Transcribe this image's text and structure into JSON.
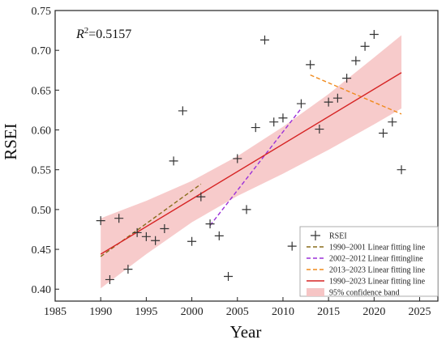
{
  "chart_data": {
    "type": "scatter",
    "xlabel": "Year",
    "ylabel": "RSEI",
    "xlim": [
      1985,
      2027
    ],
    "ylim": [
      0.385,
      0.75
    ],
    "x_ticks": [
      1985,
      1990,
      1995,
      2000,
      2005,
      2010,
      2015,
      2020,
      2025
    ],
    "y_ticks": [
      0.4,
      0.45,
      0.5,
      0.55,
      0.6,
      0.65,
      0.7,
      0.75
    ],
    "annotation": {
      "r2_label": "R",
      "r2_sup": "2",
      "r2_value": "=0.5157"
    },
    "legend_placement": "bottom-right",
    "series": [
      {
        "name": "RSEI",
        "kind": "scatter",
        "marker": "plus",
        "color": "#333333",
        "points": [
          [
            1990,
            0.486
          ],
          [
            1991,
            0.412
          ],
          [
            1992,
            0.489
          ],
          [
            1993,
            0.425
          ],
          [
            1994,
            0.471
          ],
          [
            1995,
            0.466
          ],
          [
            1996,
            0.461
          ],
          [
            1997,
            0.476
          ],
          [
            1998,
            0.561
          ],
          [
            1999,
            0.624
          ],
          [
            2000,
            0.46
          ],
          [
            2001,
            0.516
          ],
          [
            2002,
            0.482
          ],
          [
            2003,
            0.467
          ],
          [
            2004,
            0.416
          ],
          [
            2005,
            0.564
          ],
          [
            2006,
            0.5
          ],
          [
            2007,
            0.603
          ],
          [
            2008,
            0.713
          ],
          [
            2009,
            0.61
          ],
          [
            2010,
            0.615
          ],
          [
            2011,
            0.454
          ],
          [
            2012,
            0.633
          ],
          [
            2013,
            0.682
          ],
          [
            2014,
            0.601
          ],
          [
            2015,
            0.635
          ],
          [
            2016,
            0.64
          ],
          [
            2017,
            0.665
          ],
          [
            2018,
            0.687
          ],
          [
            2019,
            0.705
          ],
          [
            2020,
            0.72
          ],
          [
            2021,
            0.596
          ],
          [
            2022,
            0.61
          ],
          [
            2023,
            0.55
          ]
        ]
      },
      {
        "name": "1990–2001 Linear fitting line",
        "kind": "line",
        "dash": "dashed",
        "color": "#8a6d1c",
        "points": [
          [
            1990,
            0.441
          ],
          [
            2001,
            0.532
          ]
        ]
      },
      {
        "name": "2002–2012 Linear fittingline",
        "kind": "line",
        "dash": "dashed",
        "color": "#9b30d9",
        "points": [
          [
            2002,
            0.48
          ],
          [
            2012,
            0.627
          ]
        ]
      },
      {
        "name": "2013–2023 Linear fitting line",
        "kind": "line",
        "dash": "dashed",
        "color": "#f08a1c",
        "points": [
          [
            2013,
            0.669
          ],
          [
            2023,
            0.62
          ]
        ]
      },
      {
        "name": "1990–2023 Linear fitting line",
        "kind": "line",
        "dash": "solid",
        "color": "#d62424",
        "points": [
          [
            1990,
            0.444
          ],
          [
            2023,
            0.672
          ]
        ]
      },
      {
        "name": "95% confidence band",
        "kind": "band",
        "color": "#f6c5c5",
        "x": [
          1990,
          1995,
          2000,
          2005,
          2010,
          2015,
          2020,
          2023
        ],
        "upper": [
          0.489,
          0.511,
          0.536,
          0.567,
          0.604,
          0.645,
          0.691,
          0.719
        ],
        "lower": [
          0.401,
          0.444,
          0.484,
          0.517,
          0.545,
          0.575,
          0.607,
          0.627
        ]
      }
    ]
  }
}
